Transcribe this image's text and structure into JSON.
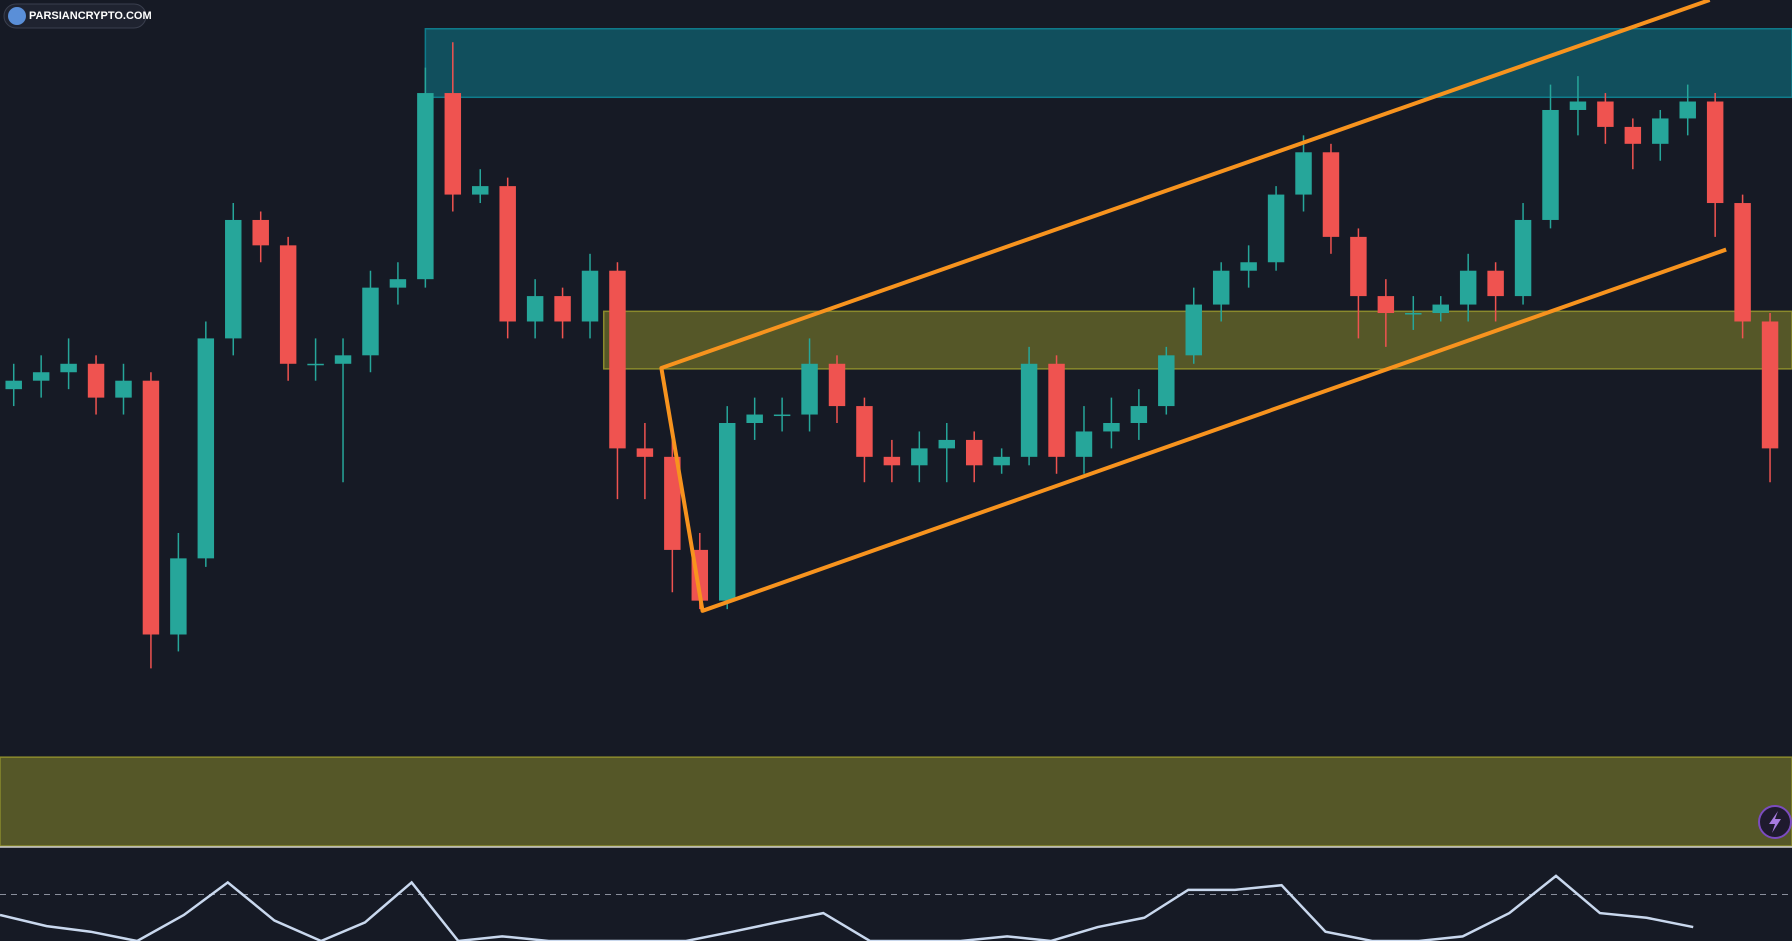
{
  "chart_data": {
    "type": "candlestick",
    "watermark": "PARSIANCRYPTO.COM",
    "xlim": [
      -0.5,
      64.8
    ],
    "ylim": [
      0,
      100
    ],
    "up_color": "#26a69a",
    "down_color": "#ef5350",
    "open": [
      54,
      55,
      56,
      57,
      53,
      55,
      25,
      34,
      60,
      74,
      71,
      57,
      57,
      58,
      66,
      67,
      89,
      77,
      78,
      62,
      65,
      62,
      68,
      47,
      46,
      35,
      29,
      50,
      51,
      51,
      57,
      52,
      46,
      45,
      47,
      48,
      45,
      46,
      57,
      46,
      49,
      50,
      52,
      58,
      64,
      68,
      69,
      77,
      82,
      72,
      65,
      63,
      63,
      64,
      68,
      65,
      74,
      87,
      88,
      85,
      83,
      86,
      88,
      76,
      62
    ],
    "high": [
      57,
      58,
      60,
      58,
      57,
      56,
      37,
      62,
      76,
      75,
      72,
      60,
      60,
      68,
      69,
      92,
      95,
      80,
      79,
      67,
      66,
      70,
      69,
      50,
      48,
      37,
      52,
      53,
      53,
      60,
      58,
      53,
      48,
      49,
      50,
      49,
      47,
      59,
      58,
      52,
      53,
      54,
      59,
      66,
      69,
      71,
      78,
      84,
      83,
      73,
      67,
      65,
      65,
      70,
      69,
      76,
      90,
      91,
      89,
      86,
      87,
      90,
      89,
      77,
      63
    ],
    "low": [
      52,
      53,
      54,
      51,
      51,
      21,
      23,
      33,
      58,
      69,
      55,
      55,
      43,
      56,
      64,
      66,
      75,
      76,
      60,
      60,
      60,
      60,
      41,
      41,
      30,
      28,
      28,
      48,
      49,
      49,
      50,
      43,
      43,
      43,
      43,
      43,
      44,
      45,
      44,
      44,
      47,
      48,
      51,
      57,
      62,
      66,
      68,
      75,
      70,
      60,
      59,
      61,
      62,
      62,
      62,
      64,
      73,
      84,
      83,
      80,
      81,
      84,
      72,
      60,
      43
    ],
    "close": [
      55,
      56,
      57,
      53,
      55,
      25,
      34,
      60,
      74,
      71,
      57,
      57,
      58,
      66,
      67,
      89,
      77,
      78,
      62,
      65,
      62,
      68,
      47,
      46,
      35,
      29,
      50,
      51,
      51,
      57,
      52,
      46,
      45,
      47,
      48,
      45,
      46,
      57,
      46,
      49,
      50,
      52,
      58,
      64,
      68,
      69,
      77,
      82,
      72,
      65,
      63,
      63,
      64,
      68,
      65,
      74,
      87,
      88,
      85,
      83,
      86,
      88,
      76,
      62,
      47
    ],
    "zones": [
      {
        "x": [
          15,
          64.8
        ],
        "y": [
          88.5,
          96.6
        ],
        "color": "#0f7c8c"
      },
      {
        "x": [
          21.5,
          64.8
        ],
        "y": [
          56.4,
          63.2
        ],
        "color": "#8a8a2c"
      },
      {
        "x": [
          -0.5,
          64.8
        ],
        "y": [
          0,
          10.5
        ],
        "color": "#8a8a2c"
      }
    ],
    "channel": {
      "color": "#f7931e",
      "x": [
        61.8,
        23.6,
        25.1,
        62.4
      ],
      "values": [
        100,
        56.5,
        27.8,
        70.5
      ]
    },
    "oscillator": {
      "color": "#c9d8ee",
      "ylim": [
        0,
        100
      ],
      "level": 50,
      "x": [
        -0.5,
        1.2,
        2.8,
        4.5,
        6.2,
        7.8,
        9.5,
        11.2,
        12.8,
        14.5,
        16.2,
        17.8,
        19.5,
        21.2,
        22.8,
        24.5,
        26.2,
        27.8,
        29.5,
        31.2,
        32.8,
        34.5,
        36.2,
        37.8,
        39.5,
        41.2,
        42.8,
        44.5,
        46.2,
        47.8,
        49.5,
        51.2,
        52.8,
        54.5,
        56.2,
        57.8,
        59.5,
        61.2
      ],
      "values": [
        28,
        16,
        10,
        0,
        28,
        63,
        22,
        0,
        20,
        63,
        0,
        5,
        0,
        0,
        0,
        0,
        10,
        20,
        30,
        0,
        0,
        0,
        5,
        0,
        15,
        25,
        55,
        55,
        60,
        10,
        0,
        0,
        5,
        30,
        70,
        30,
        25,
        15
      ]
    }
  }
}
